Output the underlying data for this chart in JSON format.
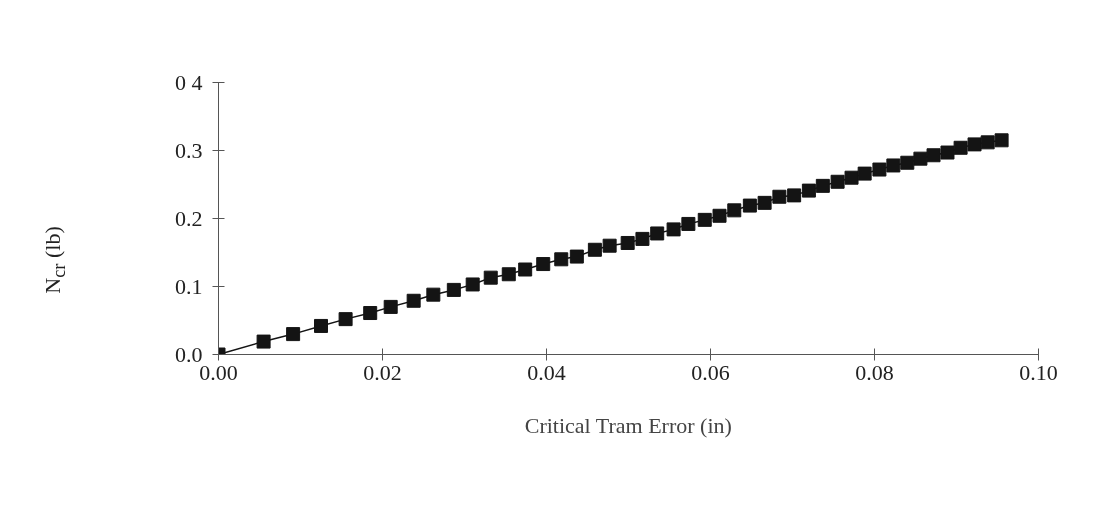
{
  "chart_data": {
    "type": "line",
    "xlabel": "Critical Tram Error (in)",
    "ylabel": "N$_{cr}$ (lb)",
    "xlim": [
      0,
      0.1
    ],
    "ylim": [
      0,
      0.4
    ],
    "xticks": [
      {
        "value": 0,
        "label": "0.00"
      },
      {
        "value": 0.02,
        "label": "0.02"
      },
      {
        "value": 0.04,
        "label": "0.04"
      },
      {
        "value": 0.06,
        "label": "0.06"
      },
      {
        "value": 0.08,
        "label": "0.08"
      },
      {
        "value": 0.1,
        "label": "0.10"
      }
    ],
    "yticks": [
      {
        "value": 0,
        "label": "0.0"
      },
      {
        "value": 0.1,
        "label": "0.1"
      },
      {
        "value": 0.2,
        "label": "0.2"
      },
      {
        "value": 0.3,
        "label": "0.3"
      },
      {
        "value": 0.4,
        "label": "0 4"
      }
    ],
    "grid": false,
    "marker": "square",
    "line_style": "solid",
    "series": [
      {
        "color": "#141414",
        "x": [
          0,
          0.0055,
          0.0091,
          0.0125,
          0.0155,
          0.0185,
          0.021,
          0.0238,
          0.0262,
          0.0287,
          0.031,
          0.0332,
          0.0354,
          0.0374,
          0.0396,
          0.0418,
          0.0437,
          0.0459,
          0.0477,
          0.0499,
          0.0517,
          0.0535,
          0.0555,
          0.0573,
          0.0593,
          0.0611,
          0.0629,
          0.0648,
          0.0666,
          0.0684,
          0.0702,
          0.072,
          0.0737,
          0.0755,
          0.0772,
          0.0788,
          0.0806,
          0.0823,
          0.084,
          0.0856,
          0.0872,
          0.0889,
          0.0905,
          0.0922,
          0.0938,
          0.0955
        ],
        "values": [
          0,
          0.019,
          0.03,
          0.042,
          0.052,
          0.061,
          0.07,
          0.079,
          0.088,
          0.095,
          0.103,
          0.113,
          0.118,
          0.125,
          0.133,
          0.14,
          0.144,
          0.154,
          0.16,
          0.164,
          0.17,
          0.178,
          0.184,
          0.192,
          0.198,
          0.204,
          0.212,
          0.219,
          0.223,
          0.232,
          0.234,
          0.241,
          0.248,
          0.254,
          0.26,
          0.266,
          0.272,
          0.278,
          0.282,
          0.288,
          0.293,
          0.297,
          0.304,
          0.309,
          0.312,
          0.315
        ]
      }
    ]
  }
}
